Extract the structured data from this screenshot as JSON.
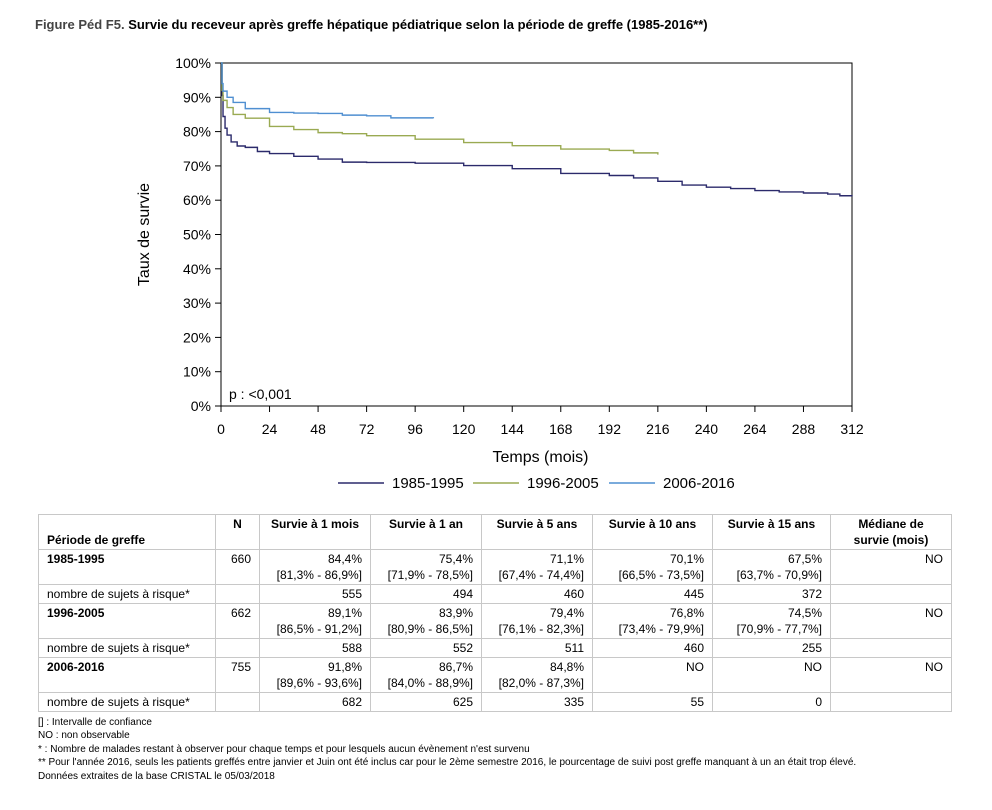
{
  "figure": {
    "label": "Figure Péd F5.",
    "title": " Survie du receveur après greffe hépatique pédiatrique selon la période de greffe (1985-2016**)"
  },
  "chart_data": {
    "type": "line",
    "title": "",
    "xlabel": "Temps (mois)",
    "ylabel": "Taux de survie",
    "xlim": [
      0,
      312
    ],
    "ylim": [
      0,
      100
    ],
    "x_ticks": [
      "0",
      "24",
      "48",
      "72",
      "96",
      "120",
      "144",
      "168",
      "192",
      "216",
      "240",
      "264",
      "288",
      "312"
    ],
    "y_ticks": [
      "0%",
      "10%",
      "20%",
      "30%",
      "40%",
      "50%",
      "60%",
      "70%",
      "80%",
      "90%",
      "100%"
    ],
    "annotation": "p : <0,001",
    "legend_position": "bottom",
    "series": [
      {
        "name": "1985-1995",
        "color": "#2b2a6b",
        "x": [
          0,
          0.5,
          1,
          2,
          3,
          5,
          8,
          12,
          18,
          24,
          36,
          48,
          60,
          72,
          96,
          120,
          144,
          168,
          192,
          204,
          216,
          228,
          240,
          252,
          264,
          276,
          288,
          300,
          306,
          312
        ],
        "y": [
          100,
          90.5,
          84.4,
          81,
          79,
          77,
          75.8,
          75.4,
          74.2,
          73.6,
          72.8,
          72,
          71.1,
          71.0,
          70.8,
          70.1,
          69.2,
          67.8,
          67.2,
          66.5,
          65.5,
          64.4,
          63.8,
          63.4,
          62.8,
          62.4,
          62.1,
          61.8,
          61.3,
          61.2
        ]
      },
      {
        "name": "1996-2005",
        "color": "#9aaa52",
        "x": [
          0,
          0.5,
          1,
          3,
          6,
          12,
          24,
          36,
          48,
          60,
          72,
          96,
          120,
          144,
          168,
          192,
          204,
          216
        ],
        "y": [
          100,
          92,
          89.1,
          87,
          85,
          83.9,
          81.5,
          80.6,
          79.7,
          79.4,
          78.8,
          77.8,
          76.8,
          75.9,
          74.9,
          74.5,
          73.8,
          73.3
        ]
      },
      {
        "name": "2006-2016",
        "color": "#4f8fd1",
        "x": [
          0,
          0.5,
          1,
          3,
          6,
          12,
          24,
          36,
          48,
          60,
          72,
          84,
          96,
          105
        ],
        "y": [
          100,
          94,
          91.8,
          90,
          88.5,
          86.7,
          85.6,
          85.4,
          85.3,
          84.8,
          84.6,
          84.0,
          84.0,
          83.9
        ]
      }
    ]
  },
  "table": {
    "headers": [
      "Période de greffe",
      "N",
      "Survie à 1 mois",
      "Survie à 1 an",
      "Survie à 5 ans",
      "Survie à 10 ans",
      "Survie à 15 ans",
      "Médiane de survie (mois)"
    ],
    "rows": [
      {
        "period": "1985-1995",
        "n": "660",
        "values": [
          "84,4%",
          "75,4%",
          "71,1%",
          "70,1%",
          "67,5%"
        ],
        "ci": [
          "[81,3% - 86,9%]",
          "[71,9% - 78,5%]",
          "[67,4% - 74,4%]",
          "[66,5% - 73,5%]",
          "[63,7% - 70,9%]"
        ],
        "median": "NO",
        "risk_label": "nombre de sujets à risque*",
        "risk": [
          "555",
          "494",
          "460",
          "445",
          "372"
        ]
      },
      {
        "period": "1996-2005",
        "n": "662",
        "values": [
          "89,1%",
          "83,9%",
          "79,4%",
          "76,8%",
          "74,5%"
        ],
        "ci": [
          "[86,5% - 91,2%]",
          "[80,9% - 86,5%]",
          "[76,1% - 82,3%]",
          "[73,4% - 79,9%]",
          "[70,9% - 77,7%]"
        ],
        "median": "NO",
        "risk_label": "nombre de sujets à risque*",
        "risk": [
          "588",
          "552",
          "511",
          "460",
          "255"
        ]
      },
      {
        "period": "2006-2016",
        "n": "755",
        "values": [
          "91,8%",
          "86,7%",
          "84,8%",
          "NO",
          "NO"
        ],
        "ci": [
          "[89,6% - 93,6%]",
          "[84,0% - 88,9%]",
          "[82,0% - 87,3%]",
          "",
          ""
        ],
        "median": "NO",
        "risk_label": "nombre de sujets à risque*",
        "risk": [
          "682",
          "625",
          "335",
          "55",
          "0"
        ]
      }
    ]
  },
  "footnotes": [
    "[] : Intervalle de confiance",
    "NO : non observable",
    "* : Nombre de malades restant à observer pour chaque temps et pour lesquels aucun évènement n'est survenu",
    "** Pour l'année 2016, seuls les patients greffés entre janvier et Juin ont été inclus car pour le 2ème semestre 2016, le pourcentage de suivi post greffe manquant à un an était trop élevé.",
    "Données extraites de la base CRISTAL le 05/03/2018"
  ]
}
